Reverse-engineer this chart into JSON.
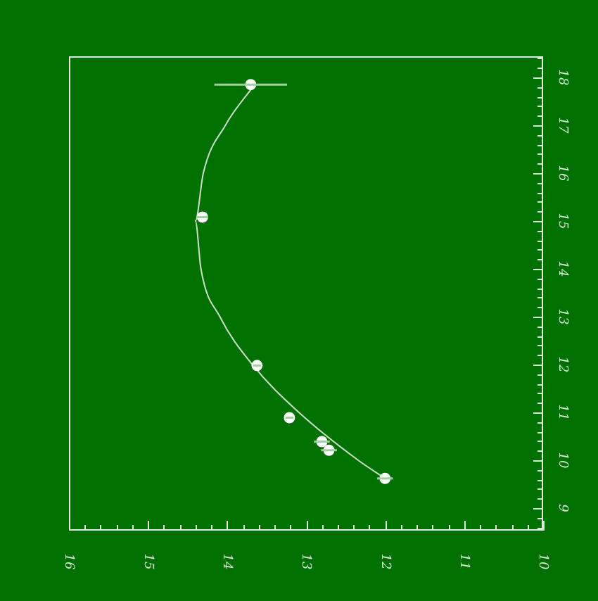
{
  "chart_data": {
    "type": "scatter",
    "xlim": [
      16,
      10
    ],
    "ylim": [
      8.53,
      18.44
    ],
    "xticks": [
      16,
      {
        "value": 15.8,
        "label": null
      },
      {
        "value": 15.6,
        "label": null
      },
      {
        "value": 15.4,
        "label": null
      },
      {
        "value": 15.2,
        "label": null
      },
      15,
      {
        "value": 14.8,
        "label": null
      },
      {
        "value": 14.6,
        "label": null
      },
      {
        "value": 14.4,
        "label": null
      },
      {
        "value": 14.2,
        "label": null
      },
      14,
      {
        "value": 13.8,
        "label": null
      },
      {
        "value": 13.6,
        "label": null
      },
      {
        "value": 13.4,
        "label": null
      },
      {
        "value": 13.2,
        "label": null
      },
      13,
      {
        "value": 12.8,
        "label": null
      },
      {
        "value": 12.6,
        "label": null
      },
      {
        "value": 12.4,
        "label": null
      },
      {
        "value": 12.2,
        "label": null
      },
      12,
      {
        "value": 11.8,
        "label": null
      },
      {
        "value": 11.6,
        "label": null
      },
      {
        "value": 11.4,
        "label": null
      },
      {
        "value": 11.2,
        "label": null
      },
      11,
      {
        "value": 10.8,
        "label": null
      },
      {
        "value": 10.6,
        "label": null
      },
      {
        "value": 10.4,
        "label": null
      },
      {
        "value": 10.2,
        "label": null
      },
      10
    ],
    "yticks": [
      {
        "value": 8.6,
        "label": null
      },
      {
        "value": 8.8,
        "label": null
      },
      9,
      {
        "value": 9.2,
        "label": null
      },
      {
        "value": 9.4,
        "label": null
      },
      {
        "value": 9.6,
        "label": null
      },
      {
        "value": 9.8,
        "label": null
      },
      10,
      {
        "value": 10.2,
        "label": null
      },
      {
        "value": 10.4,
        "label": null
      },
      {
        "value": 10.6,
        "label": null
      },
      {
        "value": 10.8,
        "label": null
      },
      11,
      {
        "value": 11.2,
        "label": null
      },
      {
        "value": 11.4,
        "label": null
      },
      {
        "value": 11.6,
        "label": null
      },
      {
        "value": 11.8,
        "label": null
      },
      12,
      {
        "value": 12.2,
        "label": null
      },
      {
        "value": 12.4,
        "label": null
      },
      {
        "value": 12.6,
        "label": null
      },
      {
        "value": 12.8,
        "label": null
      },
      13,
      {
        "value": 13.2,
        "label": null
      },
      {
        "value": 13.4,
        "label": null
      },
      {
        "value": 13.6,
        "label": null
      },
      {
        "value": 13.8,
        "label": null
      },
      14,
      {
        "value": 14.2,
        "label": null
      },
      {
        "value": 14.4,
        "label": null
      },
      {
        "value": 14.6,
        "label": null
      },
      {
        "value": 14.8,
        "label": null
      },
      15,
      {
        "value": 15.2,
        "label": null
      },
      {
        "value": 15.4,
        "label": null
      },
      {
        "value": 15.6,
        "label": null
      },
      {
        "value": 15.8,
        "label": null
      },
      16,
      {
        "value": 16.2,
        "label": null
      },
      {
        "value": 16.4,
        "label": null
      },
      {
        "value": 16.6,
        "label": null
      },
      {
        "value": 16.8,
        "label": null
      },
      17,
      {
        "value": 17.2,
        "label": null
      },
      {
        "value": 17.4,
        "label": null
      },
      {
        "value": 17.6,
        "label": null
      },
      {
        "value": 17.8,
        "label": null
      },
      18,
      {
        "value": 18.2,
        "label": null
      },
      {
        "value": 18.4,
        "label": null
      }
    ],
    "series": [
      {
        "color": "#ffffff",
        "marker": "circle",
        "x": [
          13.7,
          14.31,
          13.62,
          13.21,
          12.8,
          12.71,
          12.0
        ],
        "values": [
          17.85,
          15.08,
          11.98,
          10.89,
          10.39,
          10.21,
          9.62
        ],
        "xerrors": [
          0.46,
          0.07,
          0.05,
          0.05,
          0.1,
          0.1,
          0.1
        ]
      },
      {
        "type": "line",
        "color": "#c8e0c8",
        "marker": "none",
        "line_style": "solid",
        "x": [
          11.98,
          12.34,
          13.09,
          13.68,
          14.09,
          14.33,
          14.4,
          14.3,
          14.02,
          13.65
        ],
        "values": [
          9.6,
          10,
          11,
          12,
          13,
          14,
          15,
          16,
          17,
          17.85
        ]
      }
    ],
    "grid": false,
    "legend": false
  }
}
